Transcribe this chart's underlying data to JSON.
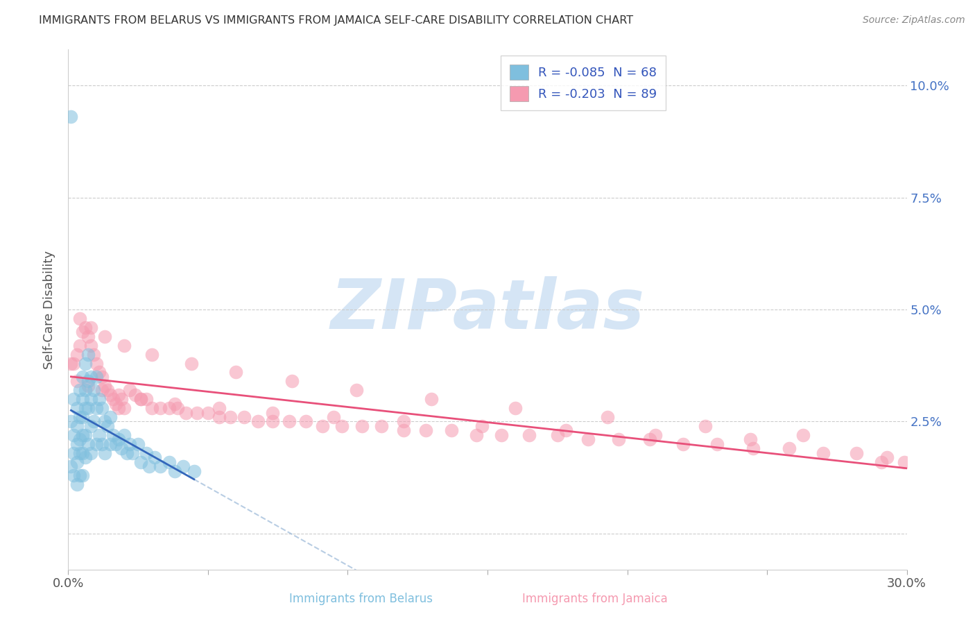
{
  "title": "IMMIGRANTS FROM BELARUS VS IMMIGRANTS FROM JAMAICA SELF-CARE DISABILITY CORRELATION CHART",
  "source": "Source: ZipAtlas.com",
  "ylabel": "Self-Care Disability",
  "x_min": 0.0,
  "x_max": 0.3,
  "y_min": -0.008,
  "y_max": 0.108,
  "y_ticks": [
    0.0,
    0.025,
    0.05,
    0.075,
    0.1
  ],
  "y_tick_labels": [
    "",
    "2.5%",
    "5.0%",
    "7.5%",
    "10.0%"
  ],
  "x_ticks": [
    0.0,
    0.05,
    0.1,
    0.15,
    0.2,
    0.25,
    0.3
  ],
  "x_tick_labels": [
    "0.0%",
    "",
    "",
    "",
    "",
    "",
    "30.0%"
  ],
  "color_belarus": "#7fbfde",
  "color_jamaica": "#f59ab0",
  "color_trendline_belarus": "#3366bb",
  "color_trendline_jamaica": "#e8507a",
  "color_dashed": "#9ab8d8",
  "watermark": "ZIPatlas",
  "watermark_color": "#d5e5f5",
  "background_color": "#ffffff",
  "R_belarus": -0.085,
  "N_belarus": 68,
  "R_jamaica": -0.203,
  "N_jamaica": 89,
  "belarus_x": [
    0.001,
    0.001,
    0.001,
    0.002,
    0.002,
    0.002,
    0.002,
    0.003,
    0.003,
    0.003,
    0.003,
    0.003,
    0.004,
    0.004,
    0.004,
    0.004,
    0.004,
    0.005,
    0.005,
    0.005,
    0.005,
    0.005,
    0.005,
    0.006,
    0.006,
    0.006,
    0.006,
    0.006,
    0.007,
    0.007,
    0.007,
    0.007,
    0.008,
    0.008,
    0.008,
    0.008,
    0.009,
    0.009,
    0.01,
    0.01,
    0.01,
    0.011,
    0.011,
    0.012,
    0.012,
    0.013,
    0.013,
    0.014,
    0.015,
    0.015,
    0.016,
    0.017,
    0.018,
    0.019,
    0.02,
    0.021,
    0.022,
    0.023,
    0.025,
    0.026,
    0.028,
    0.029,
    0.031,
    0.033,
    0.036,
    0.038,
    0.041,
    0.045
  ],
  "belarus_y": [
    0.093,
    0.025,
    0.015,
    0.03,
    0.022,
    0.018,
    0.013,
    0.028,
    0.024,
    0.02,
    0.016,
    0.011,
    0.032,
    0.026,
    0.021,
    0.018,
    0.013,
    0.035,
    0.03,
    0.026,
    0.022,
    0.018,
    0.013,
    0.038,
    0.032,
    0.028,
    0.022,
    0.017,
    0.04,
    0.034,
    0.028,
    0.02,
    0.035,
    0.03,
    0.024,
    0.018,
    0.032,
    0.025,
    0.035,
    0.028,
    0.02,
    0.03,
    0.022,
    0.028,
    0.02,
    0.025,
    0.018,
    0.024,
    0.026,
    0.02,
    0.022,
    0.02,
    0.021,
    0.019,
    0.022,
    0.018,
    0.02,
    0.018,
    0.02,
    0.016,
    0.018,
    0.015,
    0.017,
    0.015,
    0.016,
    0.014,
    0.015,
    0.014
  ],
  "jamaica_x": [
    0.001,
    0.002,
    0.003,
    0.004,
    0.005,
    0.006,
    0.007,
    0.008,
    0.009,
    0.01,
    0.011,
    0.012,
    0.013,
    0.014,
    0.015,
    0.016,
    0.017,
    0.018,
    0.019,
    0.02,
    0.022,
    0.024,
    0.026,
    0.028,
    0.03,
    0.033,
    0.036,
    0.039,
    0.042,
    0.046,
    0.05,
    0.054,
    0.058,
    0.063,
    0.068,
    0.073,
    0.079,
    0.085,
    0.091,
    0.098,
    0.105,
    0.112,
    0.12,
    0.128,
    0.137,
    0.146,
    0.155,
    0.165,
    0.175,
    0.186,
    0.197,
    0.208,
    0.22,
    0.232,
    0.245,
    0.258,
    0.27,
    0.282,
    0.293,
    0.299,
    0.004,
    0.008,
    0.013,
    0.02,
    0.03,
    0.044,
    0.06,
    0.08,
    0.103,
    0.13,
    0.16,
    0.193,
    0.228,
    0.263,
    0.291,
    0.003,
    0.007,
    0.012,
    0.018,
    0.026,
    0.038,
    0.054,
    0.073,
    0.095,
    0.12,
    0.148,
    0.178,
    0.21,
    0.244
  ],
  "jamaica_y": [
    0.038,
    0.038,
    0.04,
    0.042,
    0.045,
    0.046,
    0.044,
    0.042,
    0.04,
    0.038,
    0.036,
    0.035,
    0.033,
    0.032,
    0.031,
    0.03,
    0.029,
    0.028,
    0.03,
    0.028,
    0.032,
    0.031,
    0.03,
    0.03,
    0.028,
    0.028,
    0.028,
    0.028,
    0.027,
    0.027,
    0.027,
    0.026,
    0.026,
    0.026,
    0.025,
    0.025,
    0.025,
    0.025,
    0.024,
    0.024,
    0.024,
    0.024,
    0.023,
    0.023,
    0.023,
    0.022,
    0.022,
    0.022,
    0.022,
    0.021,
    0.021,
    0.021,
    0.02,
    0.02,
    0.019,
    0.019,
    0.018,
    0.018,
    0.017,
    0.016,
    0.048,
    0.046,
    0.044,
    0.042,
    0.04,
    0.038,
    0.036,
    0.034,
    0.032,
    0.03,
    0.028,
    0.026,
    0.024,
    0.022,
    0.016,
    0.034,
    0.033,
    0.032,
    0.031,
    0.03,
    0.029,
    0.028,
    0.027,
    0.026,
    0.025,
    0.024,
    0.023,
    0.022,
    0.021
  ]
}
